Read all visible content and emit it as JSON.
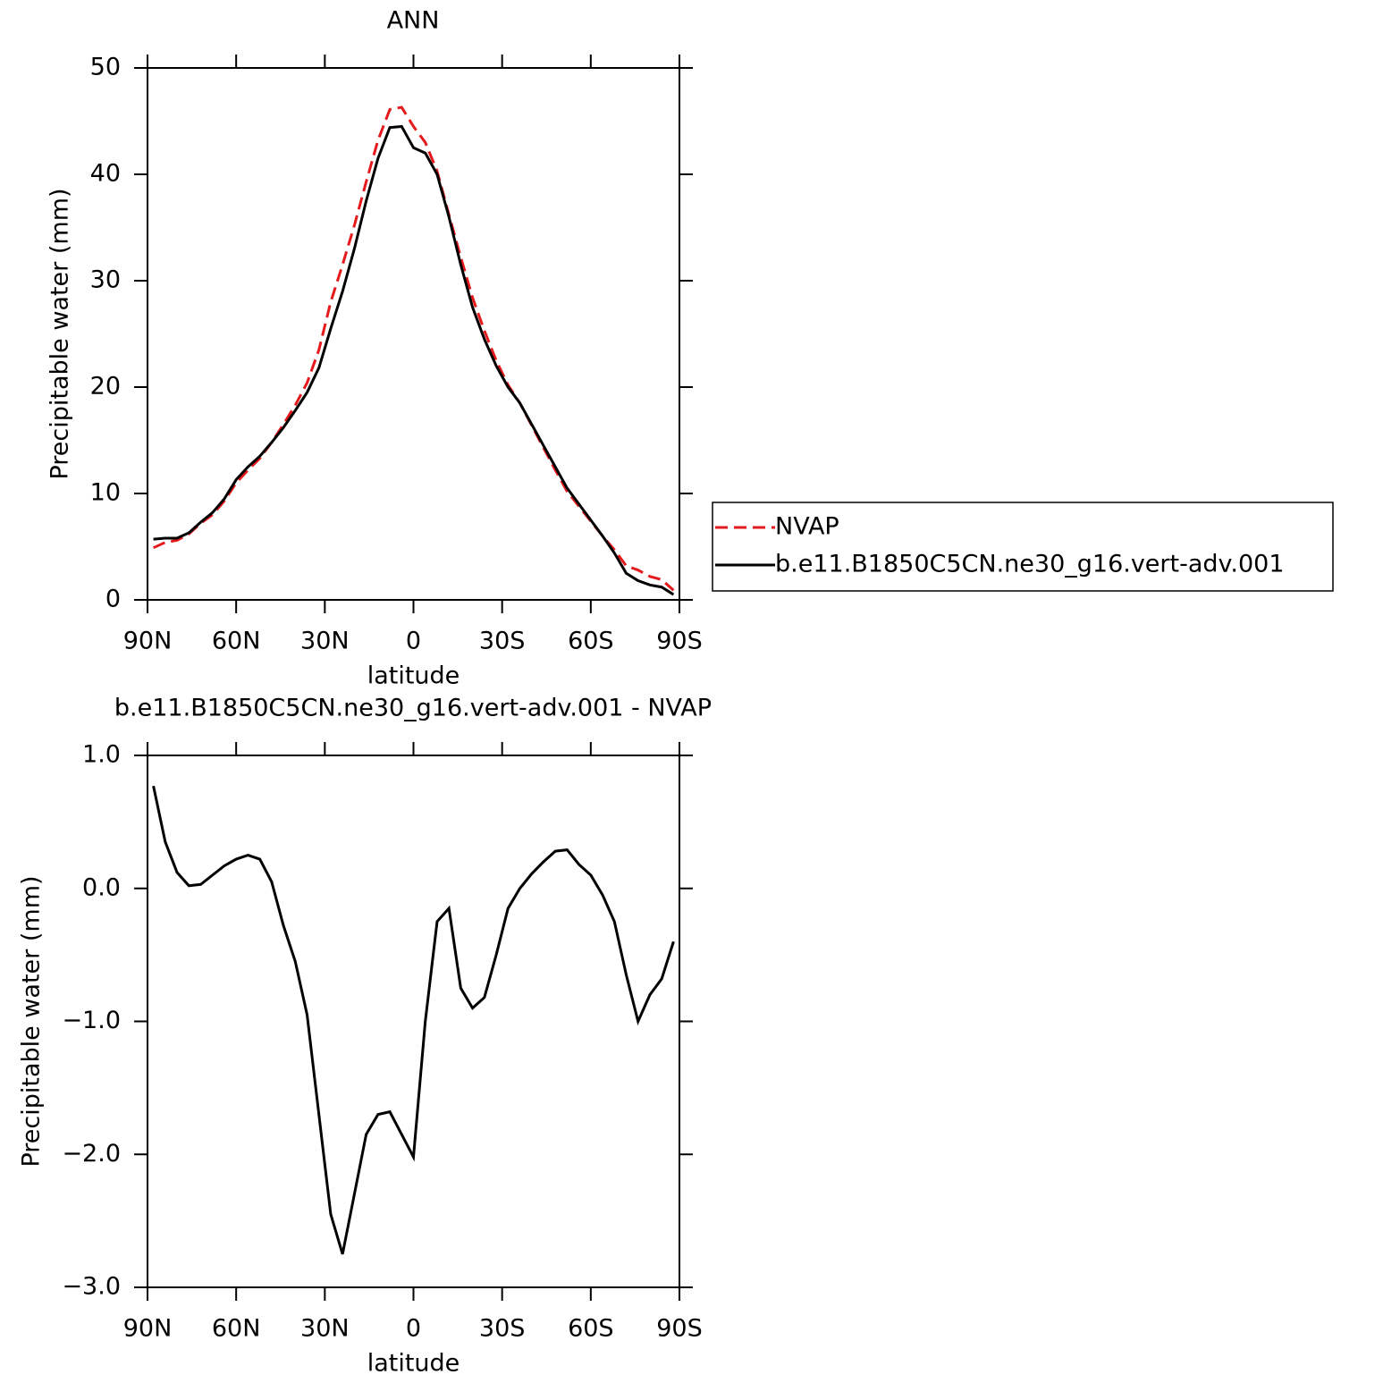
{
  "chart_data": [
    {
      "type": "line",
      "title": "ANN",
      "xlabel": "latitude",
      "ylabel": "Precipitable water (mm)",
      "x": [
        88,
        84,
        80,
        76,
        72,
        68,
        64,
        60,
        56,
        52,
        48,
        44,
        40,
        36,
        32,
        28,
        24,
        20,
        16,
        12,
        8,
        4,
        0,
        -4,
        -8,
        -12,
        -16,
        -20,
        -24,
        -28,
        -32,
        -36,
        -40,
        -44,
        -48,
        -52,
        -56,
        -60,
        -64,
        -68,
        -72,
        -76,
        -80,
        -84,
        -88
      ],
      "series": [
        {
          "name": "NVAP",
          "color": "#e41a1c",
          "dash": "dashed",
          "values": [
            4.9,
            5.4,
            5.6,
            6.2,
            7.2,
            8.0,
            9.3,
            11.0,
            12.2,
            13.3,
            14.8,
            16.5,
            18.3,
            20.4,
            23.5,
            28.0,
            31.5,
            35.2,
            39.3,
            43.2,
            46.1,
            46.3,
            44.5,
            43.0,
            40.3,
            36.2,
            32.2,
            28.4,
            25.3,
            22.5,
            20.2,
            18.5,
            16.4,
            14.3,
            12.2,
            10.2,
            8.8,
            7.4,
            6.0,
            4.7,
            3.2,
            2.8,
            2.2,
            1.9,
            0.9
          ]
        },
        {
          "name": "b.e11.B1850C5CN.ne30_g16.vert-adv.001",
          "color": "#000000",
          "dash": "solid",
          "values": [
            5.7,
            5.8,
            5.8,
            6.3,
            7.3,
            8.2,
            9.5,
            11.3,
            12.5,
            13.5,
            14.8,
            16.2,
            17.8,
            19.5,
            21.8,
            25.5,
            29.0,
            33.0,
            37.5,
            41.5,
            44.4,
            44.5,
            42.5,
            42.0,
            40.0,
            36.0,
            31.5,
            27.5,
            24.5,
            22.0,
            20.0,
            18.5,
            16.5,
            14.5,
            12.5,
            10.5,
            9.0,
            7.5,
            6.0,
            4.4,
            2.5,
            1.8,
            1.4,
            1.2,
            0.5
          ]
        }
      ],
      "xlim": [
        90,
        -90
      ],
      "xticks": [
        {
          "value": 90,
          "label": "90N"
        },
        {
          "value": 60,
          "label": "60N"
        },
        {
          "value": 30,
          "label": "30N"
        },
        0,
        {
          "value": -30,
          "label": "30S"
        },
        {
          "value": -60,
          "label": "60S"
        },
        {
          "value": -90,
          "label": "90S"
        }
      ],
      "ylim": [
        0,
        50
      ],
      "yticks": [
        0,
        10,
        20,
        30,
        40,
        50
      ],
      "legend": "right"
    },
    {
      "type": "line",
      "title": "b.e11.B1850C5CN.ne30_g16.vert-adv.001 - NVAP",
      "xlabel": "latitude",
      "ylabel": "Precipitable water (mm)",
      "x": [
        88,
        84,
        80,
        76,
        72,
        68,
        64,
        60,
        56,
        52,
        48,
        44,
        40,
        36,
        32,
        28,
        24,
        20,
        16,
        12,
        8,
        4,
        0,
        -4,
        -8,
        -12,
        -16,
        -20,
        -24,
        -28,
        -32,
        -36,
        -40,
        -44,
        -48,
        -52,
        -56,
        -60,
        -64,
        -68,
        -72,
        -76,
        -80,
        -84,
        -88
      ],
      "color": "#000000",
      "values": [
        0.77,
        0.35,
        0.12,
        0.02,
        0.03,
        0.1,
        0.17,
        0.22,
        0.25,
        0.22,
        0.05,
        -0.28,
        -0.55,
        -0.95,
        -1.7,
        -2.45,
        -2.75,
        -2.3,
        -1.85,
        -1.7,
        -1.68,
        -1.85,
        -2.02,
        -1.0,
        -0.25,
        -0.15,
        -0.75,
        -0.9,
        -0.82,
        -0.5,
        -0.15,
        0.0,
        0.11,
        0.2,
        0.28,
        0.29,
        0.18,
        0.1,
        -0.05,
        -0.25,
        -0.65,
        -1.0,
        -0.8,
        -0.68,
        -0.4
      ],
      "xlim": [
        90,
        -90
      ],
      "xticks": [
        {
          "value": 90,
          "label": "90N"
        },
        {
          "value": 60,
          "label": "60N"
        },
        {
          "value": 30,
          "label": "30N"
        },
        0,
        {
          "value": -30,
          "label": "30S"
        },
        {
          "value": -60,
          "label": "60S"
        },
        {
          "value": -90,
          "label": "90S"
        }
      ],
      "ylim": [
        -3,
        1
      ],
      "yticks": [
        {
          "value": -3,
          "label": "−3.0"
        },
        {
          "value": -2,
          "label": "−2.0"
        },
        {
          "value": -1,
          "label": "−1.0"
        },
        {
          "value": 0,
          "label": "0.0"
        },
        {
          "value": 1,
          "label": "1.0"
        }
      ]
    }
  ]
}
